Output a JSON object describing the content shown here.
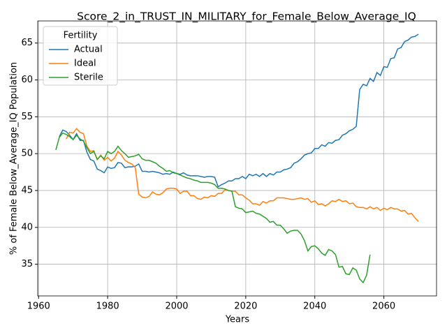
{
  "chart_data": {
    "type": "line",
    "title": "Score_2_in_TRUST_IN_MILITARY_for_Female_Below_Average_IQ",
    "xlabel": "Years",
    "ylabel": "% of Female Below_Average_IQ Population",
    "legend_title": "Fertility",
    "legend": "upper left",
    "grid": true,
    "xlim": [
      1959.75,
      2075.25
    ],
    "xticks": [
      1960,
      1980,
      2000,
      2020,
      2040,
      2060
    ],
    "ylim": [
      30.7,
      68.0
    ],
    "yticks": [
      35,
      40,
      45,
      50,
      55,
      60,
      65
    ],
    "x": [
      1965,
      1966,
      1967,
      1968,
      1969,
      1970,
      1971,
      1972,
      1973,
      1974,
      1975,
      1976,
      1977,
      1978,
      1979,
      1980,
      1981,
      1982,
      1983,
      1984,
      1985,
      1986,
      1987,
      1988,
      1989,
      1990,
      1991,
      1992,
      1993,
      1994,
      1995,
      1996,
      1997,
      1998,
      1999,
      2000,
      2001,
      2002,
      2003,
      2004,
      2005,
      2006,
      2007,
      2008,
      2009,
      2010,
      2011,
      2012,
      2013,
      2014,
      2015,
      2016,
      2017,
      2018,
      2019,
      2020,
      2021,
      2022,
      2023,
      2024,
      2025,
      2026,
      2027,
      2028,
      2029,
      2030,
      2031,
      2032,
      2033,
      2034,
      2035,
      2036,
      2037,
      2038,
      2039,
      2040,
      2041,
      2042,
      2043,
      2044,
      2045,
      2046,
      2047,
      2048,
      2049,
      2050,
      2051,
      2052,
      2053,
      2054,
      2055,
      2056,
      2057,
      2058,
      2059,
      2060,
      2061,
      2062,
      2063,
      2064,
      2065,
      2066,
      2067,
      2068,
      2069,
      2070
    ],
    "series": [
      {
        "name": "Actual",
        "color": "#1f77b4",
        "values": [
          null,
          52.3,
          53.2,
          53.0,
          52.5,
          51.9,
          52.7,
          51.8,
          51.8,
          50.2,
          49.2,
          49.0,
          47.9,
          47.7,
          47.4,
          48.2,
          48.0,
          48.1,
          48.8,
          48.7,
          48.1,
          48.2,
          48.2,
          48.3,
          48.6,
          47.6,
          47.6,
          47.5,
          47.6,
          47.5,
          47.4,
          47.2,
          47.3,
          47.2,
          47.5,
          47.3,
          47.2,
          47.4,
          47.1,
          47.0,
          47.0,
          47.0,
          46.9,
          46.8,
          46.9,
          46.9,
          46.8,
          45.5,
          45.8,
          46.0,
          46.3,
          46.3,
          46.6,
          46.6,
          46.9,
          46.6,
          47.2,
          47.0,
          47.2,
          46.9,
          47.3,
          46.9,
          47.3,
          47.1,
          47.5,
          47.5,
          47.8,
          47.9,
          48.1,
          48.7,
          48.9,
          49.3,
          49.8,
          50.0,
          50.1,
          50.7,
          50.7,
          51.2,
          51.0,
          51.5,
          51.4,
          51.8,
          51.9,
          52.5,
          52.7,
          53.1,
          53.3,
          53.7,
          58.7,
          59.4,
          59.2,
          60.2,
          59.8,
          61.0,
          60.6,
          61.8,
          61.7,
          62.9,
          63.0,
          64.2,
          64.4,
          65.2,
          65.4,
          65.8,
          65.9,
          66.2
        ]
      },
      {
        "name": "Ideal",
        "color": "#ff7f0e",
        "values": [
          null,
          null,
          null,
          52.0,
          52.9,
          52.8,
          53.4,
          52.9,
          52.7,
          51.0,
          50.3,
          50.4,
          49.2,
          49.8,
          49.1,
          49.5,
          49.0,
          49.4,
          50.3,
          49.8,
          49.1,
          48.8,
          48.6,
          48.1,
          44.5,
          44.1,
          44.0,
          44.2,
          44.8,
          44.5,
          44.4,
          44.7,
          45.2,
          45.3,
          45.3,
          45.2,
          44.6,
          44.9,
          44.9,
          44.3,
          44.3,
          43.9,
          43.8,
          44.1,
          44.0,
          44.3,
          44.2,
          44.6,
          44.6,
          45.1,
          45.0,
          44.9,
          44.9,
          44.4,
          44.4,
          44.0,
          43.7,
          43.2,
          43.2,
          43.0,
          43.5,
          43.3,
          43.6,
          43.6,
          44.0,
          44.0,
          44.0,
          43.9,
          43.8,
          43.8,
          43.9,
          44.0,
          43.8,
          43.9,
          43.4,
          43.6,
          43.1,
          43.2,
          42.9,
          43.2,
          43.6,
          43.5,
          43.8,
          43.5,
          43.6,
          43.2,
          43.3,
          42.8,
          42.7,
          42.7,
          42.5,
          42.8,
          42.5,
          42.7,
          42.3,
          42.6,
          42.4,
          42.7,
          42.5,
          42.5,
          42.2,
          42.3,
          41.8,
          41.9,
          41.3,
          40.8
        ]
      },
      {
        "name": "Sterile",
        "color": "#2ca02c",
        "values": [
          50.5,
          52.2,
          52.8,
          52.6,
          52.3,
          51.9,
          52.5,
          52.0,
          51.7,
          50.8,
          50.0,
          50.3,
          49.2,
          49.7,
          49.3,
          50.3,
          50.0,
          50.3,
          51.0,
          50.4,
          50.0,
          49.5,
          49.6,
          49.7,
          49.9,
          49.3,
          49.1,
          49.1,
          48.9,
          48.7,
          48.3,
          48.0,
          47.6,
          47.7,
          47.4,
          47.3,
          47.1,
          46.9,
          46.7,
          46.6,
          46.4,
          46.3,
          46.1,
          46.1,
          46.1,
          46.0,
          45.8,
          45.3,
          45.3,
          45.2,
          45.0,
          44.9,
          42.8,
          42.6,
          42.5,
          42.0,
          42.1,
          42.2,
          41.9,
          41.8,
          41.5,
          41.2,
          40.7,
          40.8,
          40.3,
          40.3,
          39.8,
          39.2,
          39.5,
          39.6,
          39.6,
          39.1,
          38.2,
          36.8,
          37.4,
          37.5,
          37.1,
          36.5,
          36.2,
          37.0,
          36.8,
          36.3,
          34.6,
          34.7,
          33.7,
          33.6,
          34.5,
          34.2,
          33.0,
          32.5,
          33.5,
          36.3,
          null,
          null,
          null,
          null,
          null,
          null,
          null,
          null,
          null,
          null,
          null,
          null,
          null,
          null
        ]
      }
    ]
  }
}
